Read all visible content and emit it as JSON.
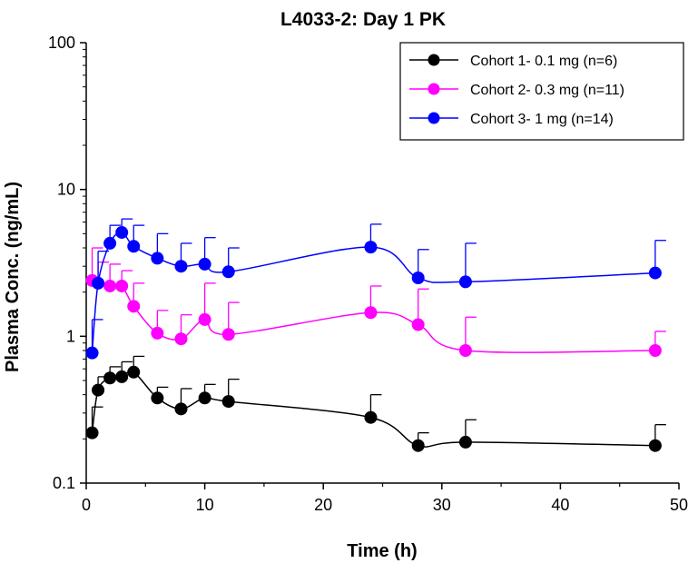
{
  "chart_data": {
    "type": "line",
    "title": "L4033-2: Day 1 PK",
    "xlabel": "Time (h)",
    "ylabel": "Plasma Conc. (ng/mL)",
    "xlim": [
      0,
      50
    ],
    "ylim": [
      0.1,
      100
    ],
    "yscale": "log",
    "x_ticks": [
      0,
      10,
      20,
      30,
      40,
      50
    ],
    "x_tick_labels": [
      "0",
      "10",
      "20",
      "30",
      "40",
      "50"
    ],
    "y_ticks": [
      0.1,
      1,
      10,
      100
    ],
    "y_tick_labels": [
      "0.1",
      "1",
      "10",
      "100"
    ],
    "grid": false,
    "legend_position": "top-right",
    "series": [
      {
        "name": "Cohort 1- 0.1 mg (n=6)",
        "color": "#000000",
        "x": [
          0.5,
          1,
          2,
          3,
          4,
          6,
          8,
          10,
          12,
          24,
          28,
          32,
          48
        ],
        "y": [
          0.22,
          0.43,
          0.52,
          0.53,
          0.57,
          0.38,
          0.32,
          0.38,
          0.36,
          0.28,
          0.18,
          0.19,
          0.18
        ],
        "error_upper": [
          0.33,
          0.53,
          0.62,
          0.67,
          0.73,
          0.45,
          0.44,
          0.47,
          0.51,
          0.4,
          0.22,
          0.27,
          0.25
        ]
      },
      {
        "name": "Cohort 2- 0.3 mg (n=11)",
        "color": "#ff00ff",
        "x": [
          0.5,
          1,
          2,
          3,
          4,
          6,
          8,
          10,
          12,
          24,
          28,
          32,
          48
        ],
        "y": [
          2.4,
          2.3,
          2.2,
          2.2,
          1.6,
          1.05,
          0.96,
          1.3,
          1.03,
          1.45,
          1.2,
          0.8,
          0.8
        ],
        "error_upper": [
          4.0,
          3.2,
          3.1,
          2.8,
          2.3,
          1.5,
          1.4,
          2.3,
          1.7,
          2.2,
          2.1,
          1.35,
          1.08
        ]
      },
      {
        "name": "Cohort 3- 1 mg (n=14)",
        "color": "#0000ff",
        "x": [
          0.5,
          1,
          2,
          3,
          4,
          6,
          8,
          10,
          12,
          24,
          28,
          32,
          48
        ],
        "y": [
          0.77,
          2.3,
          4.3,
          5.1,
          4.1,
          3.4,
          3.0,
          3.1,
          2.75,
          4.05,
          2.5,
          2.35,
          2.7
        ],
        "error_upper": [
          1.3,
          3.8,
          5.7,
          6.3,
          5.7,
          5.0,
          4.3,
          4.7,
          4.0,
          5.8,
          3.9,
          4.3,
          4.5
        ]
      }
    ]
  }
}
